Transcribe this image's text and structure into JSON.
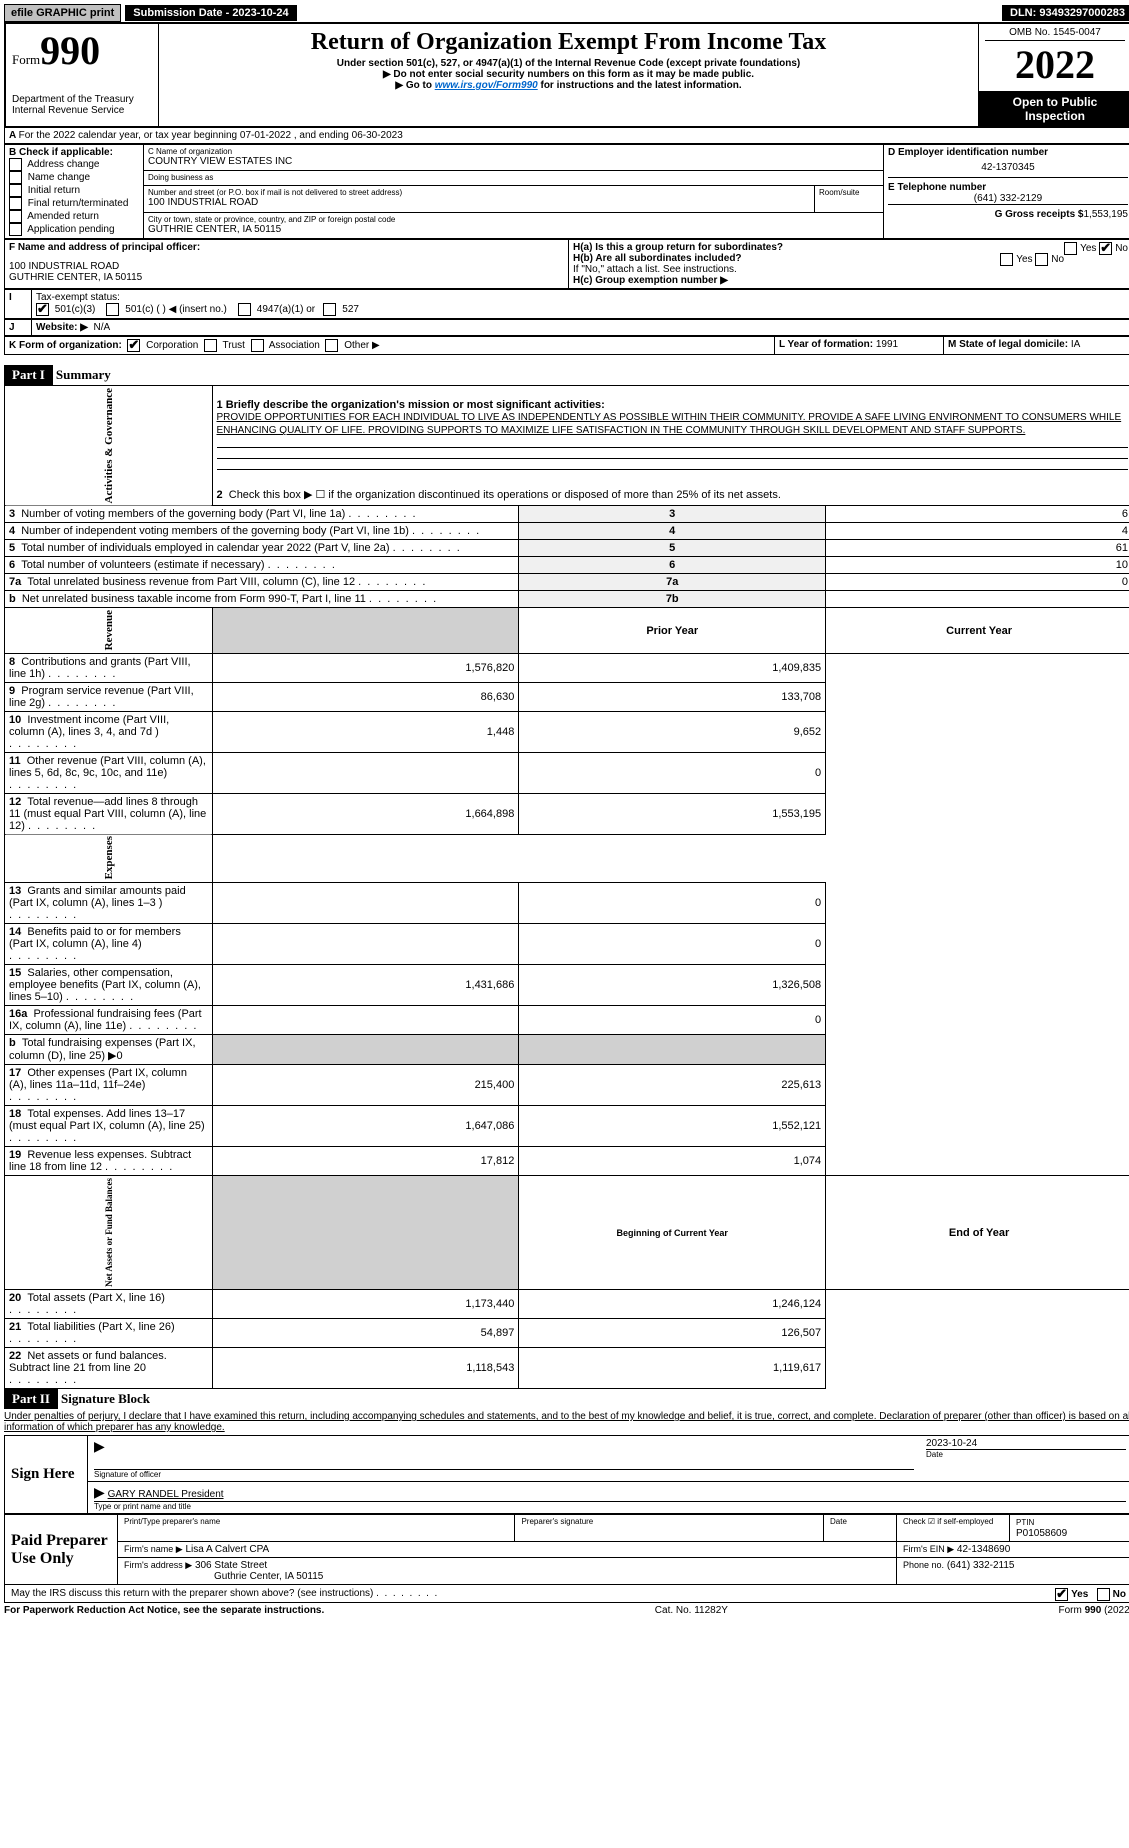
{
  "topbar": {
    "efile": "efile GRAPHIC print",
    "submission": "Submission Date - 2023-10-24",
    "dln": "DLN: 93493297000283"
  },
  "header": {
    "form_label": "Form",
    "form_num": "990",
    "title": "Return of Organization Exempt From Income Tax",
    "subtitle": "Under section 501(c), 527, or 4947(a)(1) of the Internal Revenue Code (except private foundations)",
    "warn1": "▶ Do not enter social security numbers on this form as it may be made public.",
    "warn2_pre": "▶ Go to ",
    "warn2_link": "www.irs.gov/Form990",
    "warn2_post": " for instructions and the latest information.",
    "dept": "Department of the Treasury",
    "irs": "Internal Revenue Service",
    "omb": "OMB No. 1545-0047",
    "year": "2022",
    "open": "Open to Public Inspection"
  },
  "A": {
    "line": "For the 2022 calendar year, or tax year beginning 07-01-2022    , and ending 06-30-2023"
  },
  "B": {
    "label": "B Check if applicable:",
    "opts": [
      "Address change",
      "Name change",
      "Initial return",
      "Final return/terminated",
      "Amended return",
      "Application pending"
    ]
  },
  "C": {
    "name_label": "C Name of organization",
    "name": "COUNTRY VIEW ESTATES INC",
    "dba_label": "Doing business as",
    "dba": "",
    "street_label": "Number and street (or P.O. box if mail is not delivered to street address)",
    "room_label": "Room/suite",
    "street": "100 INDUSTRIAL ROAD",
    "city_label": "City or town, state or province, country, and ZIP or foreign postal code",
    "city": "GUTHRIE CENTER, IA  50115"
  },
  "D": {
    "label": "D Employer identification number",
    "value": "42-1370345"
  },
  "E": {
    "label": "E Telephone number",
    "value": "(641) 332-2129"
  },
  "G": {
    "label": "G Gross receipts $",
    "value": "1,553,195"
  },
  "F": {
    "label": "F  Name and address of principal officer:",
    "addr1": "100 INDUSTRIAL ROAD",
    "addr2": "GUTHRIE CENTER, IA  50115"
  },
  "H": {
    "a": "H(a)  Is this a group return for subordinates?",
    "b": "H(b)  Are all subordinates included?",
    "note": "If \"No,\" attach a list. See instructions.",
    "c": "H(c)  Group exemption number ▶",
    "yes": "Yes",
    "no": "No"
  },
  "I": {
    "label": "Tax-exempt status:",
    "o1": "501(c)(3)",
    "o2": "501(c) (  ) ◀ (insert no.)",
    "o3": "4947(a)(1) or",
    "o4": "527"
  },
  "J": {
    "label": "Website: ▶",
    "value": "N/A"
  },
  "K": {
    "label": "K Form of organization:",
    "opts": [
      "Corporation",
      "Trust",
      "Association",
      "Other ▶"
    ]
  },
  "L": {
    "label": "L Year of formation:",
    "value": "1991"
  },
  "M": {
    "label": "M State of legal domicile:",
    "value": "IA"
  },
  "part1": {
    "header": "Part I",
    "title": "Summary",
    "mission_label": "1 Briefly describe the organization's mission or most significant activities:",
    "mission": "PROVIDE OPPORTUNITIES FOR EACH INDIVIDUAL TO LIVE AS INDEPENDENTLY AS POSSIBLE WITHIN THEIR COMMUNITY. PROVIDE A SAFE LIVING ENVIRONMENT TO CONSUMERS WHILE ENHANCING QUALITY OF LIFE. PROVIDING SUPPORTS TO MAXIMIZE LIFE SATISFACTION IN THE COMMUNITY THROUGH SKILL DEVELOPMENT AND STAFF SUPPORTS.",
    "line2": "Check this box ▶ ☐  if the organization discontinued its operations or disposed of more than 25% of its net assets.",
    "gov_rows": [
      {
        "n": "3",
        "t": "Number of voting members of the governing body (Part VI, line 1a)",
        "b": "3",
        "v": "6"
      },
      {
        "n": "4",
        "t": "Number of independent voting members of the governing body (Part VI, line 1b)",
        "b": "4",
        "v": "4"
      },
      {
        "n": "5",
        "t": "Total number of individuals employed in calendar year 2022 (Part V, line 2a)",
        "b": "5",
        "v": "61"
      },
      {
        "n": "6",
        "t": "Total number of volunteers (estimate if necessary)",
        "b": "6",
        "v": "10"
      },
      {
        "n": "7a",
        "t": "Total unrelated business revenue from Part VIII, column (C), line 12",
        "b": "7a",
        "v": "0"
      },
      {
        "n": "b",
        "t": "Net unrelated business taxable income from Form 990-T, Part I, line 11",
        "b": "7b",
        "v": ""
      }
    ],
    "prior_year": "Prior Year",
    "current_year": "Current Year",
    "rev_rows": [
      {
        "n": "8",
        "t": "Contributions and grants (Part VIII, line 1h)",
        "p": "1,576,820",
        "c": "1,409,835"
      },
      {
        "n": "9",
        "t": "Program service revenue (Part VIII, line 2g)",
        "p": "86,630",
        "c": "133,708"
      },
      {
        "n": "10",
        "t": "Investment income (Part VIII, column (A), lines 3, 4, and 7d )",
        "p": "1,448",
        "c": "9,652"
      },
      {
        "n": "11",
        "t": "Other revenue (Part VIII, column (A), lines 5, 6d, 8c, 9c, 10c, and 11e)",
        "p": "",
        "c": "0"
      },
      {
        "n": "12",
        "t": "Total revenue—add lines 8 through 11 (must equal Part VIII, column (A), line 12)",
        "p": "1,664,898",
        "c": "1,553,195"
      }
    ],
    "exp_rows": [
      {
        "n": "13",
        "t": "Grants and similar amounts paid (Part IX, column (A), lines 1–3 )",
        "p": "",
        "c": "0"
      },
      {
        "n": "14",
        "t": "Benefits paid to or for members (Part IX, column (A), line 4)",
        "p": "",
        "c": "0"
      },
      {
        "n": "15",
        "t": "Salaries, other compensation, employee benefits (Part IX, column (A), lines 5–10)",
        "p": "1,431,686",
        "c": "1,326,508"
      },
      {
        "n": "16a",
        "t": "Professional fundraising fees (Part IX, column (A), line 11e)",
        "p": "",
        "c": "0"
      },
      {
        "n": "b",
        "t": "Total fundraising expenses (Part IX, column (D), line 25) ▶0",
        "p": "shaded",
        "c": "shaded"
      },
      {
        "n": "17",
        "t": "Other expenses (Part IX, column (A), lines 11a–11d, 11f–24e)",
        "p": "215,400",
        "c": "225,613"
      },
      {
        "n": "18",
        "t": "Total expenses. Add lines 13–17 (must equal Part IX, column (A), line 25)",
        "p": "1,647,086",
        "c": "1,552,121"
      },
      {
        "n": "19",
        "t": "Revenue less expenses. Subtract line 18 from line 12",
        "p": "17,812",
        "c": "1,074"
      }
    ],
    "beg_year": "Beginning of Current Year",
    "end_year": "End of Year",
    "net_rows": [
      {
        "n": "20",
        "t": "Total assets (Part X, line 16)",
        "p": "1,173,440",
        "c": "1,246,124"
      },
      {
        "n": "21",
        "t": "Total liabilities (Part X, line 26)",
        "p": "54,897",
        "c": "126,507"
      },
      {
        "n": "22",
        "t": "Net assets or fund balances. Subtract line 21 from line 20",
        "p": "1,118,543",
        "c": "1,119,617"
      }
    ],
    "labels": {
      "gov": "Activities & Governance",
      "rev": "Revenue",
      "exp": "Expenses",
      "net": "Net Assets or Fund Balances"
    }
  },
  "part2": {
    "header": "Part II",
    "title": "Signature Block",
    "penalty": "Under penalties of perjury, I declare that I have examined this return, including accompanying schedules and statements, and to the best of my knowledge and belief, it is true, correct, and complete. Declaration of preparer (other than officer) is based on all information of which preparer has any knowledge.",
    "sign_here": "Sign Here",
    "sig_officer": "Signature of officer",
    "date": "Date",
    "sig_date": "2023-10-24",
    "officer_name": "GARY RANDEL President",
    "type_name": "Type or print name and title",
    "paid": "Paid Preparer Use Only",
    "prep_name_label": "Print/Type preparer's name",
    "prep_sig_label": "Preparer's signature",
    "date_label": "Date",
    "check_if": "Check ☑ if self-employed",
    "ptin_label": "PTIN",
    "ptin": "P01058609",
    "firm_name_label": "Firm's name    ▶",
    "firm_name": "Lisa A Calvert CPA",
    "firm_ein_label": "Firm's EIN ▶",
    "firm_ein": "42-1348690",
    "firm_addr_label": "Firm's address ▶",
    "firm_addr1": "306 State Street",
    "firm_addr2": "Guthrie Center, IA  50115",
    "phone_label": "Phone no.",
    "phone": "(641) 332-2115",
    "may_irs": "May the IRS discuss this return with the preparer shown above? (see instructions)",
    "yes": "Yes",
    "no": "No"
  },
  "footer": {
    "left": "For Paperwork Reduction Act Notice, see the separate instructions.",
    "mid": "Cat. No. 11282Y",
    "right": "Form 990 (2022)"
  }
}
